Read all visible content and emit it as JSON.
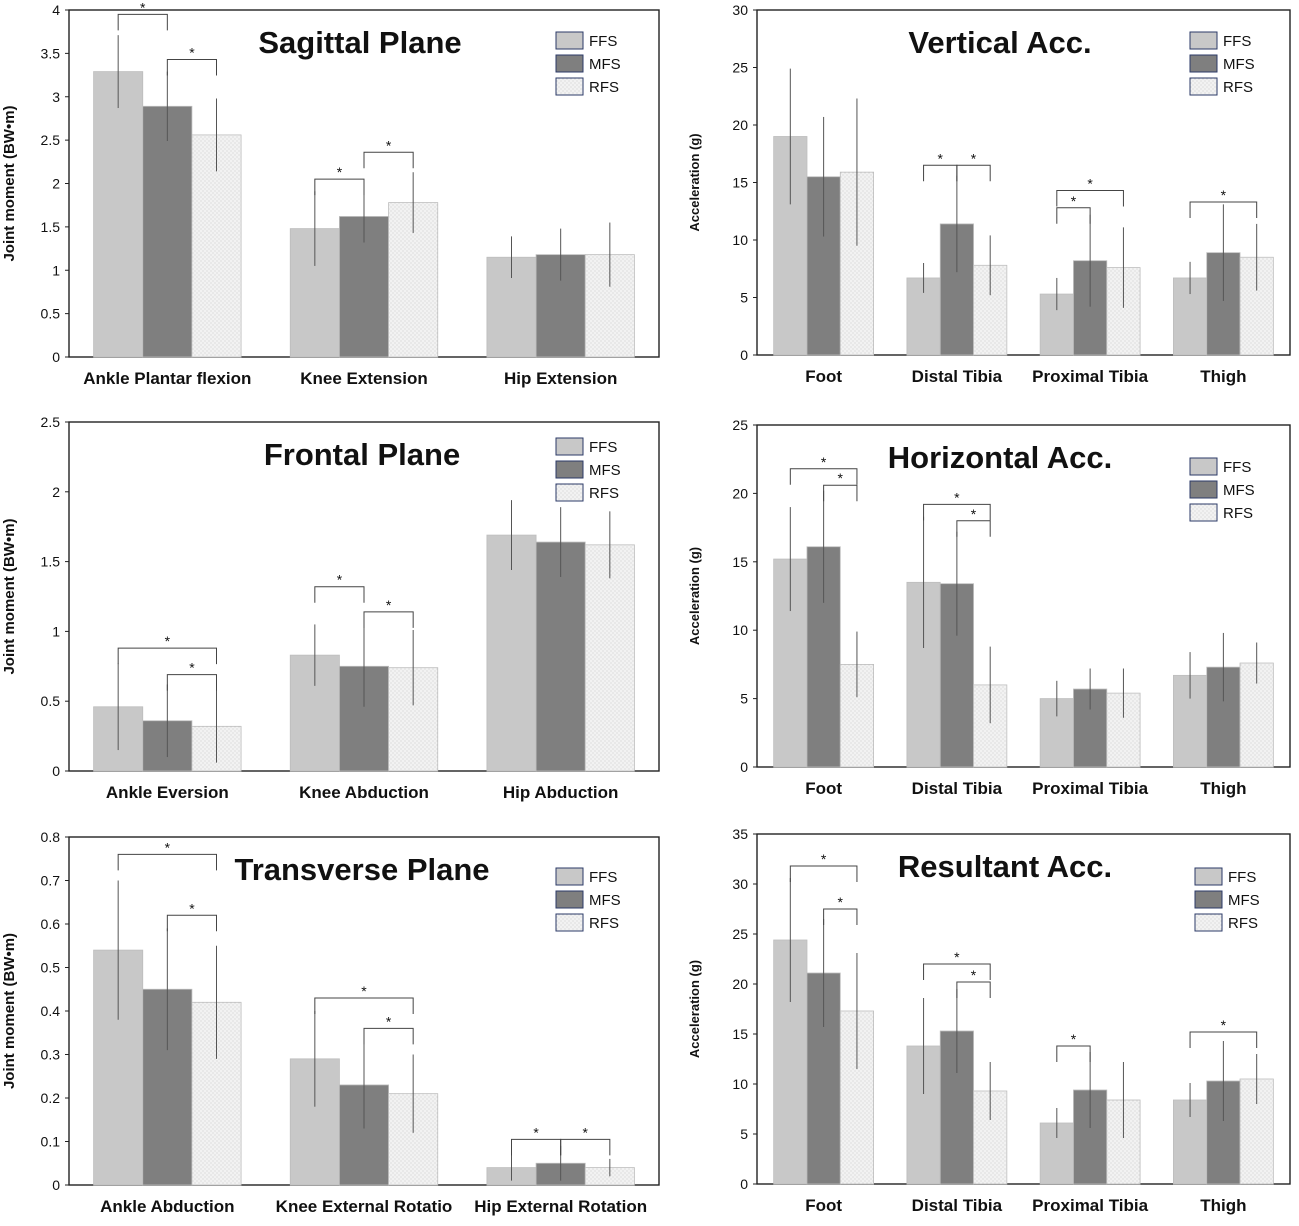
{
  "legend_colors": {
    "FFS": "#c8c8c8",
    "MFS": "#7f7f7f",
    "RFS": "#f2f2f2"
  },
  "chart_data": [
    {
      "id": "sagittal",
      "type": "bar",
      "title": "Sagittal Plane",
      "ylabel": "Joint moment (BW•m)",
      "xlabel": "",
      "ylim": [
        0,
        4
      ],
      "yticks": [
        0,
        0.5,
        1,
        1.5,
        2,
        2.5,
        3,
        3.5,
        4
      ],
      "ytick_labels": [
        "0",
        "0.5",
        "1",
        "1.5",
        "2",
        "2.5",
        "3",
        "3.5",
        "4"
      ],
      "grid": false,
      "legend": "top-right",
      "categories": [
        "Ankle Plantar flexion",
        "Knee Extension",
        "Hip Extension"
      ],
      "series": [
        {
          "name": "FFS",
          "values": [
            3.29,
            1.48,
            1.15
          ],
          "errors": [
            0.42,
            0.43,
            0.24
          ]
        },
        {
          "name": "MFS",
          "values": [
            2.89,
            1.62,
            1.18
          ],
          "errors": [
            0.4,
            0.3,
            0.3
          ]
        },
        {
          "name": "RFS",
          "values": [
            2.56,
            1.78,
            1.18
          ],
          "errors": [
            0.42,
            0.35,
            0.37
          ]
        }
      ],
      "significance": [
        {
          "cat": 0,
          "a": 0,
          "b": 1,
          "y": 3.95
        },
        {
          "cat": 0,
          "a": 1,
          "b": 2,
          "y": 3.43
        },
        {
          "cat": 1,
          "a": 0,
          "b": 1,
          "y": 2.05
        },
        {
          "cat": 1,
          "a": 1,
          "b": 2,
          "y": 2.36
        }
      ]
    },
    {
      "id": "vertical",
      "type": "bar",
      "title": "Vertical Acc.",
      "ylabel": "Acceleration (g)",
      "xlabel": "",
      "ylim": [
        0,
        30
      ],
      "yticks": [
        0,
        5,
        10,
        15,
        20,
        25,
        30
      ],
      "ytick_labels": [
        "0",
        "5",
        "10",
        "15",
        "20",
        "25",
        "30"
      ],
      "grid": false,
      "legend": "top-right",
      "categories": [
        "Foot",
        "Distal Tibia",
        "Proximal Tibia",
        "Thigh"
      ],
      "series": [
        {
          "name": "FFS",
          "values": [
            19.0,
            6.7,
            5.3,
            6.7
          ],
          "errors": [
            5.9,
            1.3,
            1.4,
            1.4
          ]
        },
        {
          "name": "MFS",
          "values": [
            15.5,
            11.4,
            8.2,
            8.9
          ],
          "errors": [
            5.2,
            4.2,
            4.0,
            4.2
          ]
        },
        {
          "name": "RFS",
          "values": [
            15.9,
            7.8,
            7.6,
            8.5
          ],
          "errors": [
            6.4,
            2.6,
            3.5,
            2.9
          ]
        }
      ],
      "significance": [
        {
          "cat": 1,
          "a": 0,
          "b": 1,
          "y": 16.5
        },
        {
          "cat": 1,
          "a": 1,
          "b": 2,
          "y": 16.5
        },
        {
          "cat": 2,
          "a": 0,
          "b": 1,
          "y": 12.8
        },
        {
          "cat": 2,
          "a": 0,
          "b": 2,
          "y": 14.3
        },
        {
          "cat": 3,
          "a": 0,
          "b": 2,
          "y": 13.3
        }
      ]
    },
    {
      "id": "frontal",
      "type": "bar",
      "title": "Frontal Plane",
      "ylabel": "Joint moment (BW•m)",
      "xlabel": "",
      "ylim": [
        0,
        2.5
      ],
      "yticks": [
        0,
        0.5,
        1,
        1.5,
        2,
        2.5
      ],
      "ytick_labels": [
        "0",
        "0.5",
        "1",
        "1.5",
        "2",
        "2.5"
      ],
      "grid": false,
      "legend": "top-right",
      "categories": [
        "Ankle Eversion",
        "Knee Abduction",
        "Hip Abduction"
      ],
      "series": [
        {
          "name": "FFS",
          "values": [
            0.46,
            0.83,
            1.69
          ],
          "errors": [
            0.31,
            0.22,
            0.25
          ]
        },
        {
          "name": "MFS",
          "values": [
            0.36,
            0.75,
            1.64
          ],
          "errors": [
            0.26,
            0.29,
            0.25
          ]
        },
        {
          "name": "RFS",
          "values": [
            0.32,
            0.74,
            1.62
          ],
          "errors": [
            0.26,
            0.27,
            0.24
          ]
        }
      ],
      "significance": [
        {
          "cat": 0,
          "a": 0,
          "b": 2,
          "y": 0.88
        },
        {
          "cat": 0,
          "a": 1,
          "b": 2,
          "y": 0.69
        },
        {
          "cat": 1,
          "a": 0,
          "b": 1,
          "y": 1.32
        },
        {
          "cat": 1,
          "a": 1,
          "b": 2,
          "y": 1.14
        }
      ]
    },
    {
      "id": "horizontal",
      "type": "bar",
      "title": "Horizontal Acc.",
      "ylabel": "Acceleration (g)",
      "xlabel": "",
      "ylim": [
        0,
        25
      ],
      "yticks": [
        0,
        5,
        10,
        15,
        20,
        25
      ],
      "ytick_labels": [
        "0",
        "5",
        "10",
        "15",
        "20",
        "25"
      ],
      "grid": false,
      "legend": "top-right",
      "categories": [
        "Foot",
        "Distal Tibia",
        "Proximal Tibia",
        "Thigh"
      ],
      "series": [
        {
          "name": "FFS",
          "values": [
            15.2,
            13.5,
            5.0,
            6.7
          ],
          "errors": [
            3.8,
            4.8,
            1.3,
            1.7
          ]
        },
        {
          "name": "MFS",
          "values": [
            16.1,
            13.4,
            5.7,
            7.3
          ],
          "errors": [
            4.1,
            3.8,
            1.5,
            2.5
          ]
        },
        {
          "name": "RFS",
          "values": [
            7.5,
            6.0,
            5.4,
            7.6
          ],
          "errors": [
            2.4,
            2.8,
            1.8,
            1.5
          ]
        }
      ],
      "significance": [
        {
          "cat": 0,
          "a": 0,
          "b": 2,
          "y": 21.8
        },
        {
          "cat": 0,
          "a": 1,
          "b": 2,
          "y": 20.6
        },
        {
          "cat": 1,
          "a": 0,
          "b": 2,
          "y": 19.2
        },
        {
          "cat": 1,
          "a": 1,
          "b": 2,
          "y": 18.0
        }
      ]
    },
    {
      "id": "transverse",
      "type": "bar",
      "title": "Transverse Plane",
      "ylabel": "Joint moment (BW•m)",
      "xlabel": "",
      "ylim": [
        0,
        0.8
      ],
      "yticks": [
        0,
        0.1,
        0.2,
        0.3,
        0.4,
        0.5,
        0.6,
        0.7,
        0.8
      ],
      "ytick_labels": [
        "0",
        "0.1",
        "0.2",
        "0.3",
        "0.4",
        "0.5",
        "0.6",
        "0.7",
        "0.8"
      ],
      "grid": false,
      "legend": "top-right",
      "categories": [
        "Ankle Abduction",
        "Knee External Rotatio",
        "Hip External Rotation"
      ],
      "series": [
        {
          "name": "FFS",
          "values": [
            0.54,
            0.29,
            0.04
          ],
          "errors": [
            0.16,
            0.11,
            0.03
          ]
        },
        {
          "name": "MFS",
          "values": [
            0.45,
            0.23,
            0.05
          ],
          "errors": [
            0.14,
            0.1,
            0.04
          ]
        },
        {
          "name": "RFS",
          "values": [
            0.42,
            0.21,
            0.04
          ],
          "errors": [
            0.13,
            0.09,
            0.02
          ]
        }
      ],
      "significance": [
        {
          "cat": 0,
          "a": 0,
          "b": 2,
          "y": 0.76
        },
        {
          "cat": 0,
          "a": 1,
          "b": 2,
          "y": 0.62
        },
        {
          "cat": 1,
          "a": 0,
          "b": 2,
          "y": 0.43
        },
        {
          "cat": 1,
          "a": 1,
          "b": 2,
          "y": 0.36
        },
        {
          "cat": 2,
          "a": 0,
          "b": 1,
          "y": 0.105
        },
        {
          "cat": 2,
          "a": 1,
          "b": 2,
          "y": 0.105
        }
      ]
    },
    {
      "id": "resultant",
      "type": "bar",
      "title": "Resultant Acc.",
      "ylabel": "Acceleration (g)",
      "xlabel": "",
      "ylim": [
        0,
        35
      ],
      "yticks": [
        0,
        5,
        10,
        15,
        20,
        25,
        30,
        35
      ],
      "ytick_labels": [
        "0",
        "5",
        "10",
        "15",
        "20",
        "25",
        "30",
        "35"
      ],
      "grid": false,
      "legend": "top-right",
      "categories": [
        "Foot",
        "Distal Tibia",
        "Proximal Tibia",
        "Thigh"
      ],
      "series": [
        {
          "name": "FFS",
          "values": [
            24.4,
            13.8,
            6.1,
            8.4
          ],
          "errors": [
            6.2,
            4.8,
            1.5,
            1.7
          ]
        },
        {
          "name": "MFS",
          "values": [
            21.1,
            15.3,
            9.4,
            10.3
          ],
          "errors": [
            5.4,
            4.2,
            3.8,
            4.0
          ]
        },
        {
          "name": "RFS",
          "values": [
            17.3,
            9.3,
            8.4,
            10.5
          ],
          "errors": [
            5.8,
            2.9,
            3.8,
            2.5
          ]
        }
      ],
      "significance": [
        {
          "cat": 0,
          "a": 0,
          "b": 2,
          "y": 31.8
        },
        {
          "cat": 0,
          "a": 1,
          "b": 2,
          "y": 27.5
        },
        {
          "cat": 1,
          "a": 0,
          "b": 2,
          "y": 22.0
        },
        {
          "cat": 1,
          "a": 1,
          "b": 2,
          "y": 20.2
        },
        {
          "cat": 2,
          "a": 0,
          "b": 1,
          "y": 13.8
        },
        {
          "cat": 3,
          "a": 0,
          "b": 2,
          "y": 15.2
        }
      ]
    }
  ]
}
